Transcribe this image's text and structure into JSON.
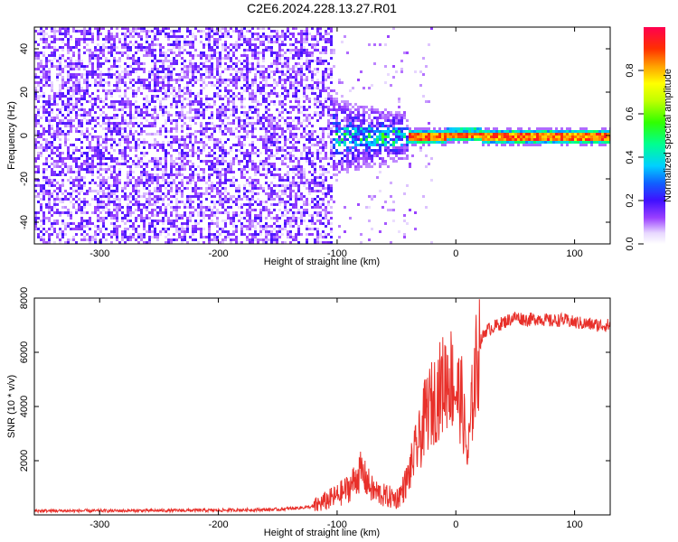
{
  "title": "C2E6.2024.228.13.27.R01",
  "chart_data": [
    {
      "type": "heatmap",
      "xlabel": "Height of straight line (km)",
      "ylabel": "Frequency (Hz)",
      "xlim": [
        -355,
        130
      ],
      "ylim": [
        -50,
        50
      ],
      "x_ticks": [
        -300,
        -200,
        -100,
        0,
        100
      ],
      "y_ticks": [
        -40,
        -20,
        0,
        20,
        40
      ],
      "colorbar": {
        "label": "Normalized spectral amplitude",
        "range": [
          0,
          1
        ],
        "ticks": [
          0.0,
          0.2,
          0.4,
          0.6,
          0.8
        ]
      },
      "regions": [
        {
          "x_range": [
            -355,
            -105
          ],
          "freq_spread": [
            -50,
            50
          ],
          "amplitude": 0.1
        },
        {
          "x_range": [
            -150,
            -40
          ],
          "freq_spread": [
            -15,
            12
          ],
          "amplitude": 0.35
        },
        {
          "x_range": [
            -40,
            130
          ],
          "freq_center": 0,
          "freq_width": 3,
          "amplitude": 0.95
        }
      ]
    },
    {
      "type": "line",
      "xlabel": "Height of straight line (km)",
      "ylabel": "SNR (10 * v/v)",
      "xlim": [
        -355,
        130
      ],
      "ylim": [
        0,
        8000
      ],
      "x_ticks": [
        -300,
        -200,
        -100,
        0,
        100
      ],
      "y_ticks": [
        2000,
        4000,
        6000,
        8000
      ],
      "color": "#e8302a",
      "series": [
        {
          "x": [
            -355,
            -300,
            -250,
            -200,
            -150,
            -120,
            -100,
            -90,
            -80,
            -70,
            -60,
            -50,
            -45,
            -40,
            -35,
            -30,
            -25,
            -20,
            -15,
            -10,
            -5,
            0,
            5,
            10,
            15,
            20,
            25,
            30,
            40,
            50,
            60,
            70,
            80,
            90,
            100,
            110,
            120,
            130
          ],
          "y": [
            150,
            150,
            160,
            170,
            200,
            300,
            700,
            1000,
            1600,
            900,
            700,
            600,
            900,
            1400,
            2200,
            2800,
            3800,
            4100,
            4500,
            4900,
            5200,
            4600,
            4200,
            2000,
            4800,
            6300,
            6800,
            6900,
            7100,
            7300,
            7200,
            7250,
            7150,
            7200,
            7100,
            7050,
            7000,
            7000
          ]
        }
      ]
    }
  ]
}
